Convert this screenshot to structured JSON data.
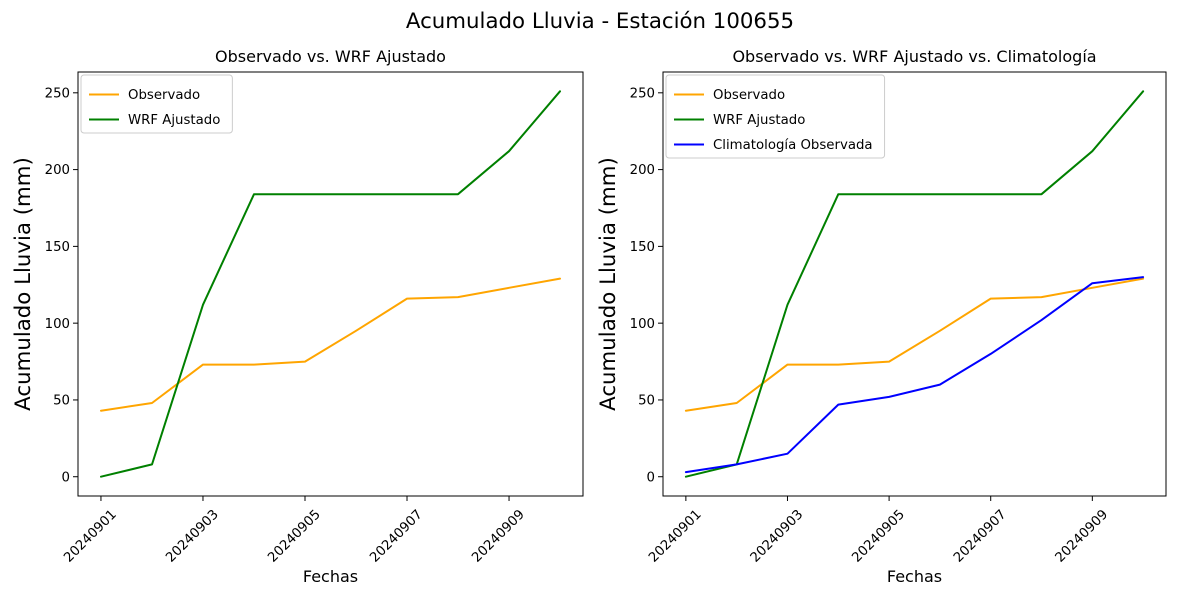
{
  "figure": {
    "suptitle": "Acumulado Lluvia - Estación 100655",
    "background": "#ffffff",
    "text_color": "#000000",
    "axis_color": "#000000"
  },
  "chart_data": [
    {
      "type": "line",
      "title": "Observado vs. WRF Ajustado",
      "xlabel": "Fechas",
      "ylabel": "Acumulado Lluvia (mm)",
      "x": [
        "20240901",
        "20240902",
        "20240903",
        "20240904",
        "20240905",
        "20240906",
        "20240907",
        "20240908",
        "20240909",
        "20240910"
      ],
      "xtick_labels": [
        "20240901",
        "20240903",
        "20240905",
        "20240907",
        "20240909"
      ],
      "xtick_indices": [
        0,
        2,
        4,
        6,
        8
      ],
      "yticks": [
        0,
        50,
        100,
        150,
        200,
        250
      ],
      "ylim": [
        0,
        250
      ],
      "grid": false,
      "legend": {
        "position": "upper left",
        "frame": true,
        "frame_color": "#cccccc"
      },
      "series": [
        {
          "name": "Observado",
          "color": "#FFA500",
          "values": [
            43,
            48,
            73,
            73,
            75,
            95,
            116,
            117,
            123,
            129
          ]
        },
        {
          "name": "WRF Ajustado",
          "color": "#008000",
          "values": [
            0,
            8,
            112,
            184,
            184,
            184,
            184,
            184,
            212,
            251
          ]
        }
      ]
    },
    {
      "type": "line",
      "title": "Observado vs. WRF Ajustado vs. Climatología",
      "xlabel": "Fechas",
      "ylabel": "Acumulado Lluvia (mm)",
      "x": [
        "20240901",
        "20240902",
        "20240903",
        "20240904",
        "20240905",
        "20240906",
        "20240907",
        "20240908",
        "20240909",
        "20240910"
      ],
      "xtick_labels": [
        "20240901",
        "20240903",
        "20240905",
        "20240907",
        "20240909"
      ],
      "xtick_indices": [
        0,
        2,
        4,
        6,
        8
      ],
      "yticks": [
        0,
        50,
        100,
        150,
        200,
        250
      ],
      "ylim": [
        0,
        250
      ],
      "grid": false,
      "legend": {
        "position": "upper left",
        "frame": true,
        "frame_color": "#cccccc"
      },
      "series": [
        {
          "name": "Observado",
          "color": "#FFA500",
          "values": [
            43,
            48,
            73,
            73,
            75,
            95,
            116,
            117,
            123,
            129
          ]
        },
        {
          "name": "WRF Ajustado",
          "color": "#008000",
          "values": [
            0,
            8,
            112,
            184,
            184,
            184,
            184,
            184,
            212,
            251
          ]
        },
        {
          "name": "Climatología Observada",
          "color": "#0000FF",
          "values": [
            3,
            8,
            15,
            47,
            52,
            60,
            80,
            102,
            126,
            130
          ]
        }
      ]
    }
  ]
}
